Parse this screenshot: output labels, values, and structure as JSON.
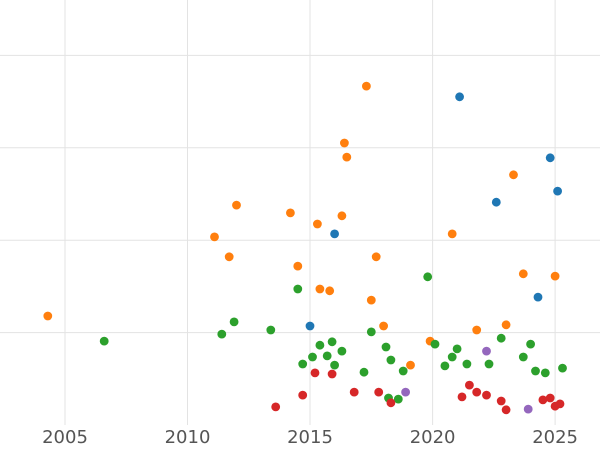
{
  "chart_data": {
    "type": "scatter",
    "title": "",
    "xlabel": "",
    "ylabel": "",
    "xlim": [
      2002.35,
      2026.83
    ],
    "ylim": [
      0,
      115
    ],
    "x_ticks": [
      2005,
      2010,
      2015,
      2020,
      2025
    ],
    "x_tick_labels": [
      "2005",
      "2010",
      "2015",
      "2020",
      "2025"
    ],
    "y_gridlines": [
      25,
      50,
      75,
      100
    ],
    "grid": true,
    "legend_visible": false,
    "marker_radius": 4.4,
    "grid_color": "#e3e3e3",
    "tick_label_color": "#555555",
    "background_color": "#ffffff",
    "series": [
      {
        "name": "orange",
        "color": "#ff7f0e",
        "points": [
          [
            2004.3,
            29.5
          ],
          [
            2011.1,
            50.9
          ],
          [
            2011.7,
            45.5
          ],
          [
            2012.0,
            59.5
          ],
          [
            2014.2,
            57.4
          ],
          [
            2014.5,
            43.0
          ],
          [
            2015.3,
            54.4
          ],
          [
            2015.4,
            36.8
          ],
          [
            2015.8,
            36.3
          ],
          [
            2016.3,
            56.6
          ],
          [
            2016.4,
            76.3
          ],
          [
            2016.5,
            72.5
          ],
          [
            2017.3,
            91.7
          ],
          [
            2017.5,
            33.8
          ],
          [
            2017.7,
            45.5
          ],
          [
            2018.0,
            26.8
          ],
          [
            2019.1,
            16.2
          ],
          [
            2019.9,
            22.7
          ],
          [
            2020.8,
            51.7
          ],
          [
            2021.8,
            25.7
          ],
          [
            2023.0,
            27.1
          ],
          [
            2023.3,
            67.7
          ],
          [
            2023.7,
            40.9
          ],
          [
            2025.0,
            40.3
          ]
        ]
      },
      {
        "name": "green",
        "color": "#2ca02c",
        "points": [
          [
            2006.6,
            22.7
          ],
          [
            2011.4,
            24.6
          ],
          [
            2011.9,
            27.9
          ],
          [
            2013.4,
            25.7
          ],
          [
            2014.5,
            36.8
          ],
          [
            2014.7,
            16.5
          ],
          [
            2015.1,
            18.4
          ],
          [
            2015.4,
            21.6
          ],
          [
            2015.7,
            18.7
          ],
          [
            2015.9,
            22.5
          ],
          [
            2016.0,
            16.2
          ],
          [
            2016.3,
            20.0
          ],
          [
            2017.2,
            14.3
          ],
          [
            2017.5,
            25.2
          ],
          [
            2018.1,
            21.1
          ],
          [
            2018.2,
            7.3
          ],
          [
            2018.3,
            17.6
          ],
          [
            2018.6,
            7.0
          ],
          [
            2018.8,
            14.6
          ],
          [
            2019.8,
            40.1
          ],
          [
            2020.1,
            21.9
          ],
          [
            2020.5,
            16.0
          ],
          [
            2020.8,
            18.4
          ],
          [
            2021.0,
            20.6
          ],
          [
            2021.4,
            16.5
          ],
          [
            2022.3,
            16.5
          ],
          [
            2022.8,
            23.5
          ],
          [
            2023.7,
            18.4
          ],
          [
            2024.0,
            21.9
          ],
          [
            2024.2,
            14.6
          ],
          [
            2024.6,
            14.1
          ],
          [
            2025.3,
            15.4
          ]
        ]
      },
      {
        "name": "red",
        "color": "#d62728",
        "points": [
          [
            2013.6,
            4.9
          ],
          [
            2014.7,
            8.1
          ],
          [
            2015.2,
            14.1
          ],
          [
            2015.9,
            13.8
          ],
          [
            2016.8,
            8.9
          ],
          [
            2017.8,
            8.9
          ],
          [
            2018.3,
            6.0
          ],
          [
            2021.2,
            7.6
          ],
          [
            2021.5,
            10.8
          ],
          [
            2021.8,
            8.9
          ],
          [
            2022.2,
            8.1
          ],
          [
            2022.8,
            6.5
          ],
          [
            2023.0,
            4.1
          ],
          [
            2024.5,
            6.8
          ],
          [
            2024.8,
            7.3
          ],
          [
            2025.0,
            5.1
          ],
          [
            2025.2,
            5.7
          ]
        ]
      },
      {
        "name": "blue",
        "color": "#1f77b4",
        "points": [
          [
            2015.0,
            26.8
          ],
          [
            2016.0,
            51.7
          ],
          [
            2021.1,
            88.8
          ],
          [
            2022.6,
            60.3
          ],
          [
            2024.3,
            34.6
          ],
          [
            2024.8,
            72.3
          ],
          [
            2025.1,
            63.3
          ]
        ]
      },
      {
        "name": "purple",
        "color": "#9467bd",
        "points": [
          [
            2018.9,
            8.9
          ],
          [
            2022.2,
            20.0
          ],
          [
            2023.9,
            4.3
          ]
        ]
      }
    ]
  }
}
